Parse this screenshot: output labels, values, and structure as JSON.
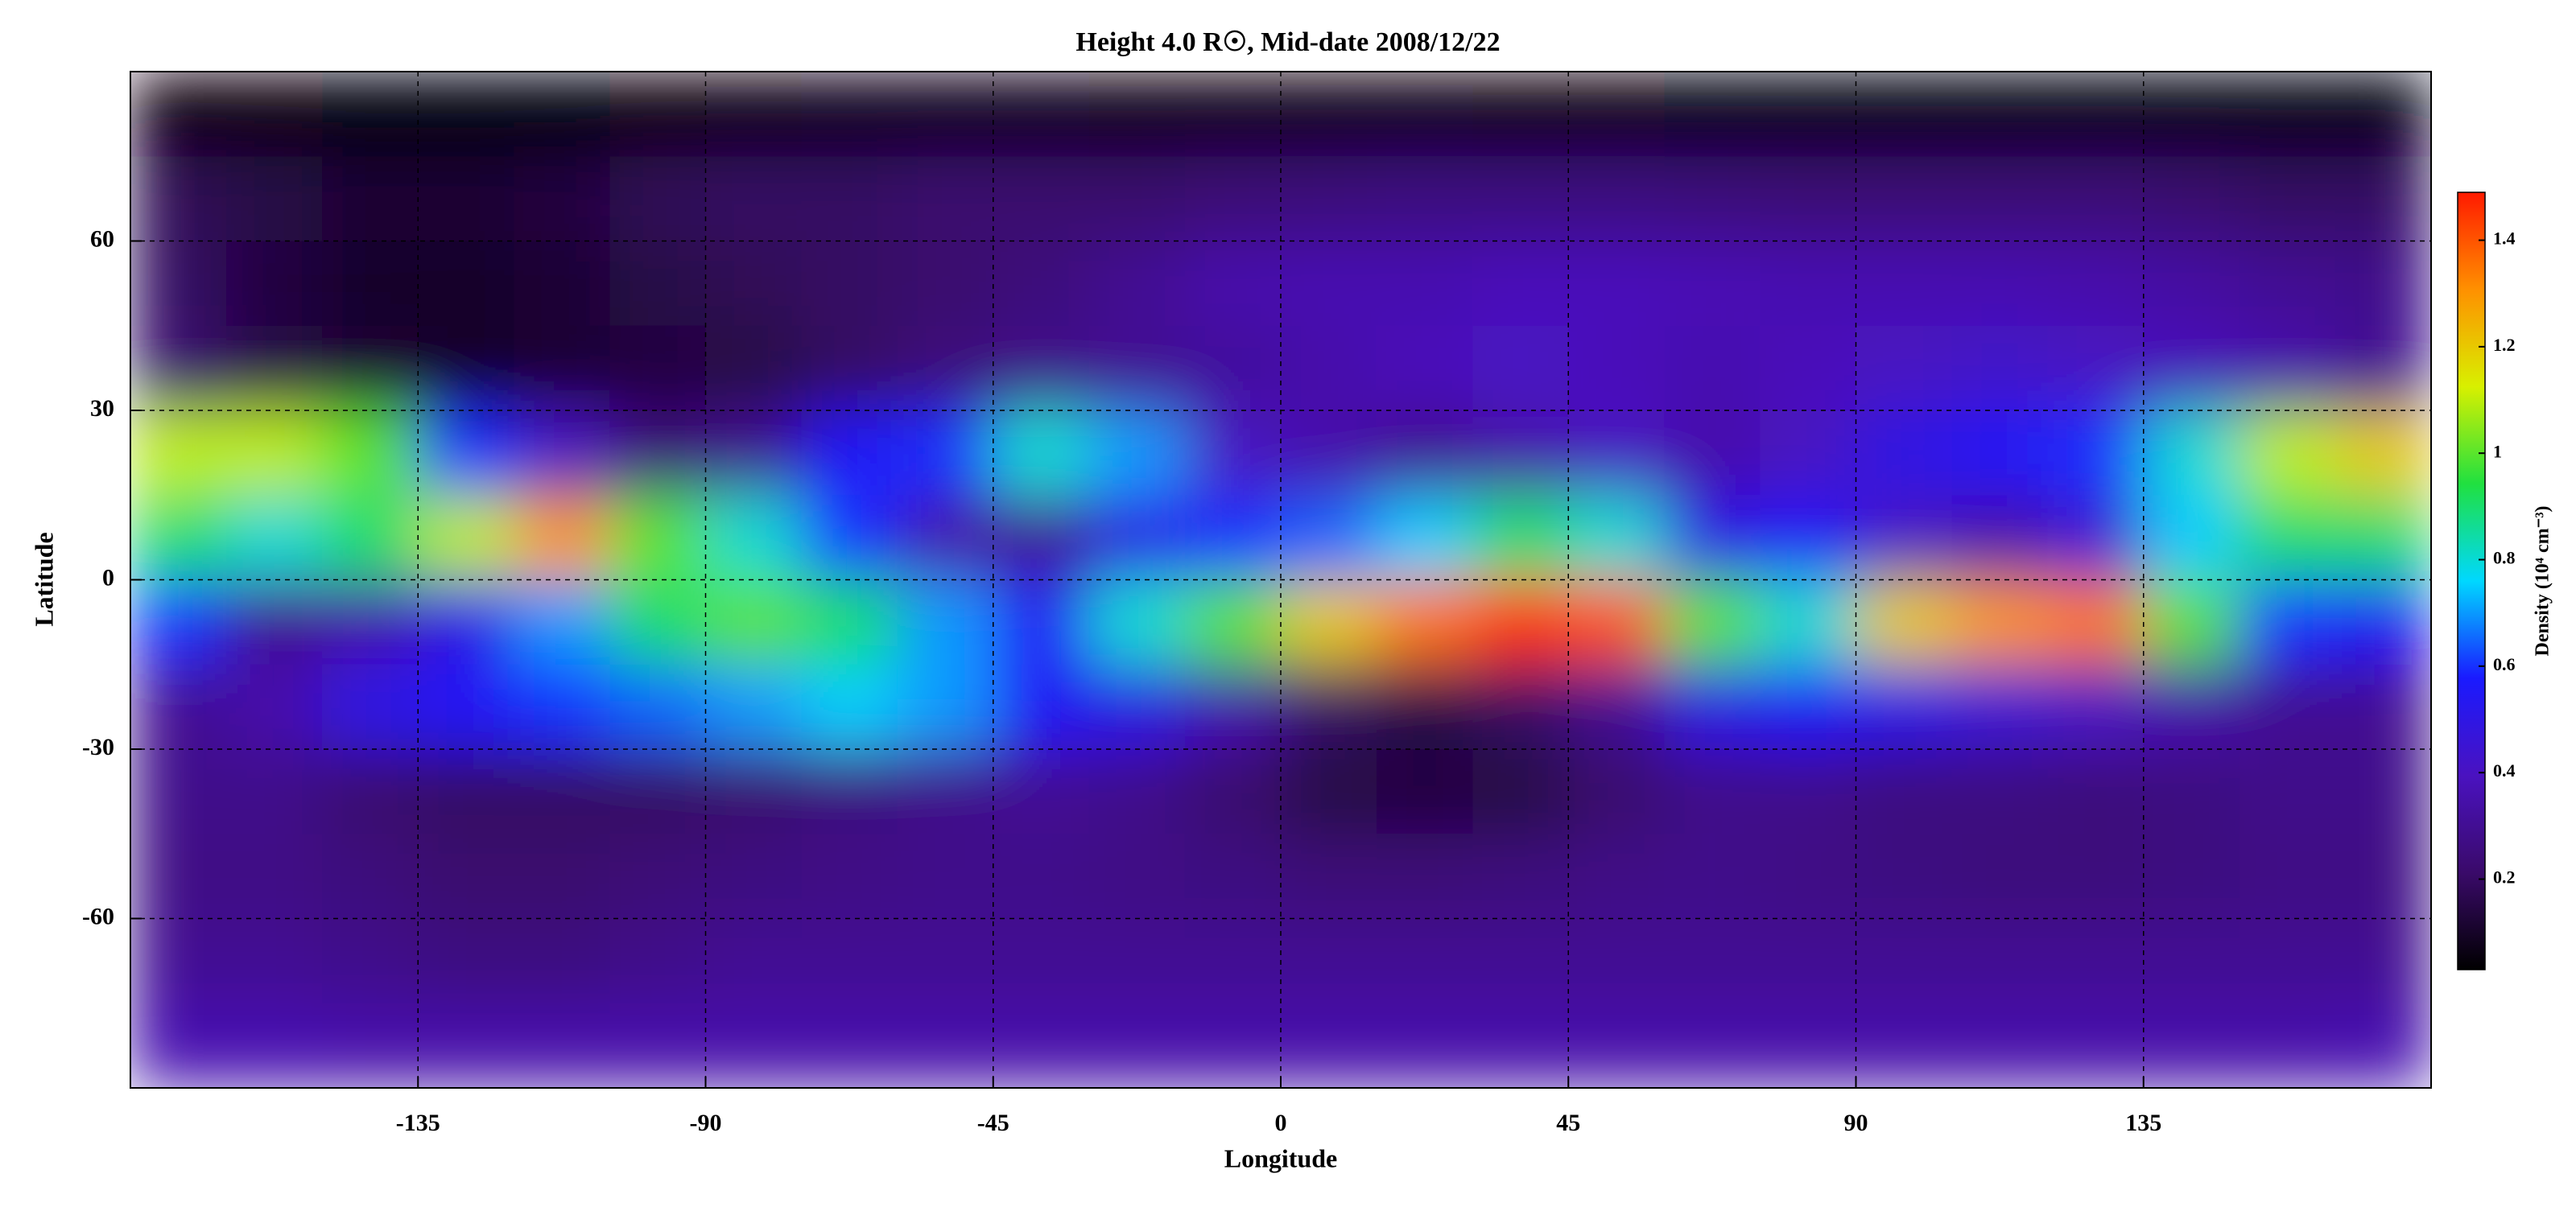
{
  "chart_data": {
    "type": "heatmap",
    "title": "Height 4.0 R☉, Mid-date 2008/12/22",
    "x_label": "Longitude",
    "y_label": "Latitude",
    "colorbar_label": "Density (10⁴ cm⁻³)",
    "x": [
      -172.5,
      -157.5,
      -142.5,
      -127.5,
      -112.5,
      -97.5,
      -82.5,
      -67.5,
      -52.5,
      -37.5,
      -22.5,
      -7.5,
      7.5,
      22.5,
      37.5,
      52.5,
      67.5,
      82.5,
      97.5,
      112.5,
      127.5,
      142.5,
      157.5,
      172.5
    ],
    "y": [
      82.5,
      67.5,
      52.5,
      37.5,
      22.5,
      7.5,
      -7.5,
      -22.5,
      -37.5,
      -52.5,
      -67.5,
      -82.5
    ],
    "values": [
      [
        0.06,
        0.06,
        0.05,
        0.05,
        0.05,
        0.06,
        0.07,
        0.08,
        0.08,
        0.08,
        0.07,
        0.07,
        0.07,
        0.07,
        0.06,
        0.06,
        0.05,
        0.05,
        0.05,
        0.05,
        0.05,
        0.05,
        0.05,
        0.05
      ],
      [
        0.18,
        0.15,
        0.12,
        0.12,
        0.14,
        0.18,
        0.2,
        0.2,
        0.22,
        0.22,
        0.22,
        0.24,
        0.25,
        0.26,
        0.26,
        0.26,
        0.25,
        0.24,
        0.24,
        0.24,
        0.24,
        0.22,
        0.2,
        0.2
      ],
      [
        0.2,
        0.14,
        0.1,
        0.1,
        0.12,
        0.15,
        0.18,
        0.2,
        0.22,
        0.25,
        0.3,
        0.35,
        0.36,
        0.36,
        0.38,
        0.38,
        0.37,
        0.36,
        0.36,
        0.36,
        0.35,
        0.33,
        0.3,
        0.28
      ],
      [
        0.22,
        0.15,
        0.12,
        0.1,
        0.12,
        0.14,
        0.15,
        0.2,
        0.25,
        0.28,
        0.3,
        0.32,
        0.35,
        0.38,
        0.4,
        0.38,
        0.36,
        0.38,
        0.4,
        0.42,
        0.4,
        0.38,
        0.35,
        0.3
      ],
      [
        1.1,
        1.1,
        1.0,
        0.6,
        0.4,
        0.25,
        0.3,
        0.55,
        0.6,
        0.8,
        0.7,
        0.4,
        0.35,
        0.3,
        0.35,
        0.4,
        0.35,
        0.4,
        0.5,
        0.55,
        0.6,
        0.8,
        1.1,
        1.2
      ],
      [
        0.9,
        0.8,
        0.9,
        1.1,
        1.3,
        1.0,
        0.8,
        0.6,
        0.35,
        0.3,
        0.5,
        0.6,
        0.65,
        0.75,
        0.9,
        0.8,
        0.5,
        0.55,
        0.4,
        0.35,
        0.45,
        0.75,
        0.9,
        0.9
      ],
      [
        0.6,
        0.3,
        0.35,
        0.5,
        0.7,
        0.9,
        1.0,
        0.9,
        0.7,
        0.55,
        0.8,
        1.0,
        1.2,
        1.35,
        1.45,
        1.4,
        1.0,
        0.8,
        1.2,
        1.3,
        1.35,
        1.0,
        0.6,
        0.55
      ],
      [
        0.3,
        0.35,
        0.5,
        0.55,
        0.6,
        0.65,
        0.7,
        0.75,
        0.7,
        0.55,
        0.5,
        0.35,
        0.2,
        0.15,
        0.2,
        0.3,
        0.5,
        0.55,
        0.5,
        0.45,
        0.4,
        0.35,
        0.3,
        0.3
      ],
      [
        0.28,
        0.28,
        0.22,
        0.2,
        0.2,
        0.2,
        0.22,
        0.26,
        0.28,
        0.3,
        0.28,
        0.22,
        0.15,
        0.14,
        0.15,
        0.22,
        0.28,
        0.28,
        0.26,
        0.26,
        0.25,
        0.26,
        0.28,
        0.28
      ],
      [
        0.27,
        0.27,
        0.25,
        0.22,
        0.22,
        0.24,
        0.26,
        0.27,
        0.28,
        0.28,
        0.27,
        0.26,
        0.24,
        0.24,
        0.25,
        0.27,
        0.28,
        0.27,
        0.26,
        0.25,
        0.25,
        0.26,
        0.27,
        0.27
      ],
      [
        0.3,
        0.3,
        0.28,
        0.26,
        0.26,
        0.28,
        0.3,
        0.3,
        0.3,
        0.3,
        0.3,
        0.3,
        0.3,
        0.3,
        0.3,
        0.3,
        0.3,
        0.3,
        0.3,
        0.3,
        0.3,
        0.3,
        0.3,
        0.3
      ],
      [
        0.36,
        0.36,
        0.35,
        0.35,
        0.35,
        0.35,
        0.35,
        0.35,
        0.35,
        0.35,
        0.35,
        0.35,
        0.35,
        0.35,
        0.35,
        0.35,
        0.35,
        0.35,
        0.35,
        0.35,
        0.35,
        0.35,
        0.35,
        0.36
      ]
    ],
    "xlim": [
      -180,
      180
    ],
    "xticks": [
      -135,
      -90,
      -45,
      0,
      45,
      90,
      135
    ],
    "ylim": [
      -90,
      90
    ],
    "yticks": [
      -60,
      -30,
      0,
      30,
      60
    ],
    "clim": [
      0.03,
      1.49
    ],
    "cticks": [
      0.2,
      0.4,
      0.6,
      0.8,
      1.0,
      1.2,
      1.4
    ],
    "colormap": [
      "#000000",
      "#3a0a6a",
      "#4a12c0",
      "#1a1aff",
      "#00d8ff",
      "#20e040",
      "#d8f000",
      "#ff9000",
      "#ff1a00"
    ],
    "grid": true
  }
}
